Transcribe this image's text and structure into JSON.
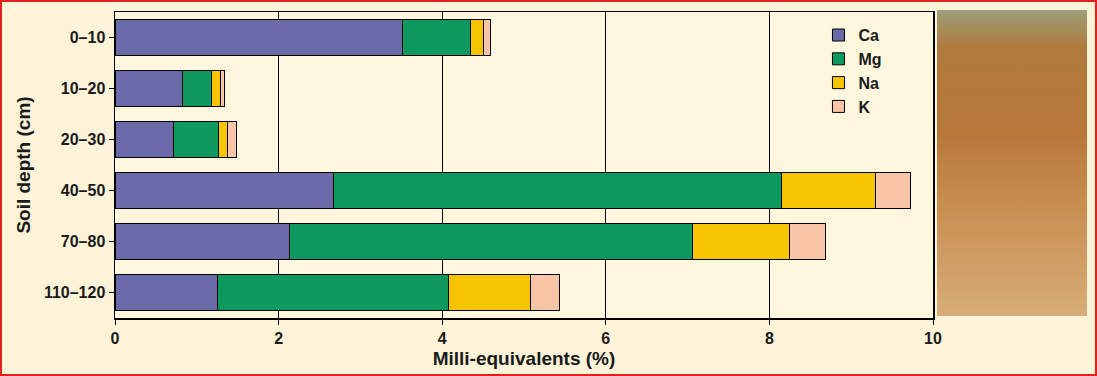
{
  "chart_data": {
    "type": "bar",
    "orientation": "horizontal",
    "stacked": true,
    "grid": true,
    "legend": "top right",
    "xlabel": "Milli-equivalents (%)",
    "ylabel": "Soil depth (cm)",
    "categories": [
      "0–10",
      "10–20",
      "20–30",
      "40–50",
      "70–80",
      "110–120"
    ],
    "series": [
      {
        "name": "Ca",
        "color": "#6b6aa8",
        "values": [
          3.52,
          0.82,
          0.72,
          2.67,
          2.13,
          1.25
        ]
      },
      {
        "name": "Mg",
        "color": "#0e9a5e",
        "values": [
          0.83,
          0.36,
          0.54,
          5.48,
          4.93,
          2.83
        ]
      },
      {
        "name": "Na",
        "color": "#f6c500",
        "values": [
          0.15,
          0.11,
          0.12,
          1.15,
          1.18,
          1.0
        ]
      },
      {
        "name": "K",
        "color": "#f8c6a6",
        "values": [
          0.09,
          0.05,
          0.1,
          0.42,
          0.44,
          0.35
        ]
      }
    ],
    "xlim": [
      0,
      10
    ],
    "xticks": [
      0,
      2,
      4,
      6,
      8,
      10
    ]
  }
}
